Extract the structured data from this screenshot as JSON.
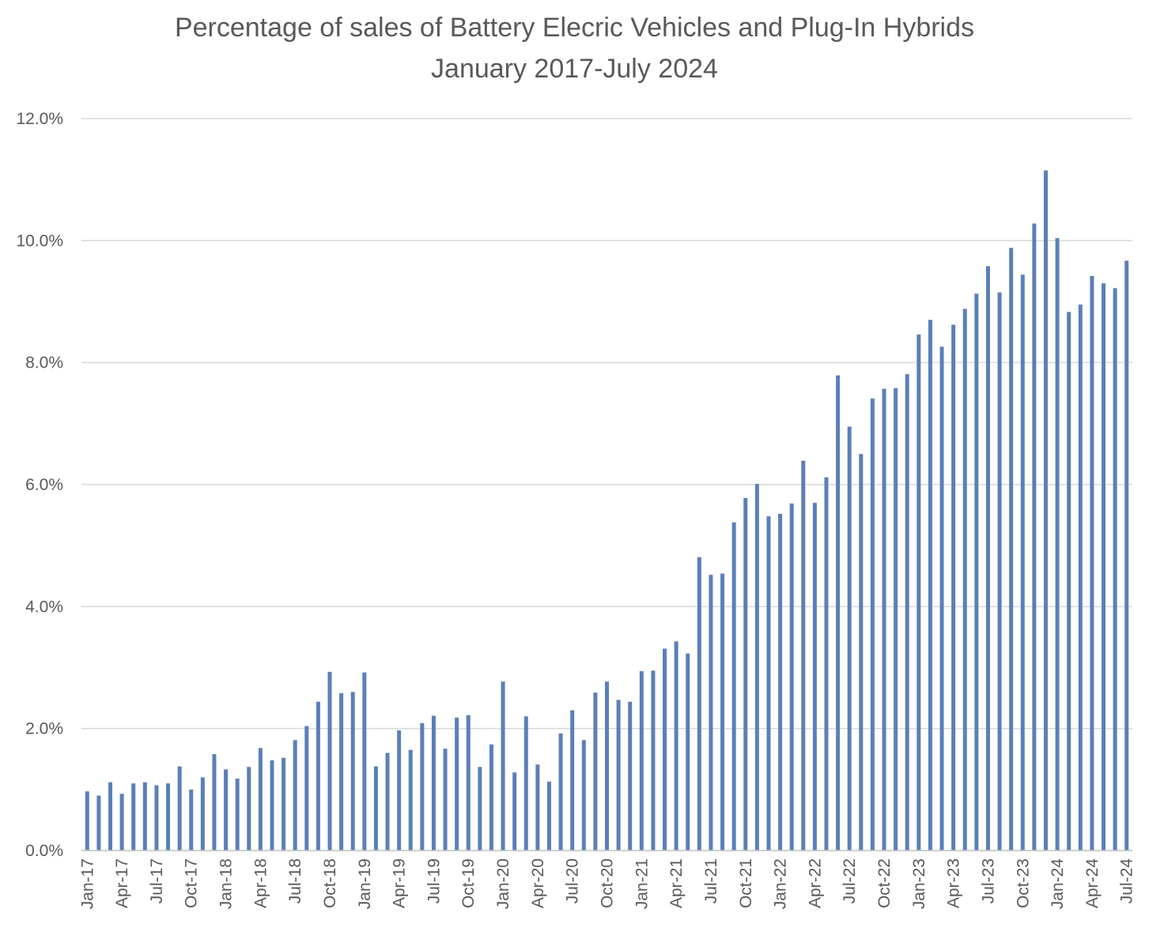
{
  "chart_data": {
    "type": "bar",
    "title": "Percentage of sales of Battery Elecric Vehicles and Plug-In Hybrids",
    "subtitle": "January 2017-July 2024",
    "xlabel": "",
    "ylabel": "",
    "ylim": [
      0,
      12
    ],
    "yticks": [
      "0.0%",
      "2.0%",
      "4.0%",
      "6.0%",
      "8.0%",
      "10.0%",
      "12.0%"
    ],
    "grid": true,
    "legend": "none",
    "bar_color": "#5b7fb8",
    "categories": [
      "Jan-17",
      "Feb-17",
      "Mar-17",
      "Apr-17",
      "May-17",
      "Jun-17",
      "Jul-17",
      "Aug-17",
      "Sep-17",
      "Oct-17",
      "Nov-17",
      "Dec-17",
      "Jan-18",
      "Feb-18",
      "Mar-18",
      "Apr-18",
      "May-18",
      "Jun-18",
      "Jul-18",
      "Aug-18",
      "Sep-18",
      "Oct-18",
      "Nov-18",
      "Dec-18",
      "Jan-19",
      "Feb-19",
      "Mar-19",
      "Apr-19",
      "May-19",
      "Jun-19",
      "Jul-19",
      "Aug-19",
      "Sep-19",
      "Oct-19",
      "Nov-19",
      "Dec-19",
      "Jan-20",
      "Feb-20",
      "Mar-20",
      "Apr-20",
      "May-20",
      "Jun-20",
      "Jul-20",
      "Aug-20",
      "Sep-20",
      "Oct-20",
      "Nov-20",
      "Dec-20",
      "Jan-21",
      "Feb-21",
      "Mar-21",
      "Apr-21",
      "May-21",
      "Jun-21",
      "Jul-21",
      "Aug-21",
      "Sep-21",
      "Oct-21",
      "Nov-21",
      "Dec-21",
      "Jan-22",
      "Feb-22",
      "Mar-22",
      "Apr-22",
      "May-22",
      "Jun-22",
      "Jul-22",
      "Aug-22",
      "Sep-22",
      "Oct-22",
      "Nov-22",
      "Dec-22",
      "Jan-23",
      "Feb-23",
      "Mar-23",
      "Apr-23",
      "May-23",
      "Jun-23",
      "Jul-23",
      "Aug-23",
      "Sep-23",
      "Oct-23",
      "Nov-23",
      "Dec-23",
      "Jan-24",
      "Feb-24",
      "Mar-24",
      "Apr-24",
      "May-24",
      "Jun-24",
      "Jul-24"
    ],
    "tick_labels": [
      "Jan-17",
      "Apr-17",
      "Jul-17",
      "Oct-17",
      "Jan-18",
      "Apr-18",
      "Jul-18",
      "Oct-18",
      "Jan-19",
      "Apr-19",
      "Jul-19",
      "Oct-19",
      "Jan-20",
      "Apr-20",
      "Jul-20",
      "Oct-20",
      "Jan-21",
      "Apr-21",
      "Jul-21",
      "Oct-21",
      "Jan-22",
      "Apr-22",
      "Jul-22",
      "Oct-22",
      "Jan-23",
      "Apr-23",
      "Jul-23",
      "Oct-23",
      "Jan-24",
      "Apr-24",
      "Jul-24"
    ],
    "values": [
      0.97,
      0.9,
      1.12,
      0.93,
      1.1,
      1.12,
      1.07,
      1.1,
      1.38,
      1.0,
      1.2,
      1.58,
      1.33,
      1.18,
      1.37,
      1.68,
      1.48,
      1.52,
      1.81,
      2.04,
      2.44,
      2.93,
      2.58,
      2.6,
      2.92,
      1.38,
      1.6,
      1.97,
      1.65,
      2.09,
      2.21,
      1.67,
      2.18,
      2.22,
      1.37,
      1.74,
      2.77,
      1.28,
      2.2,
      1.41,
      1.13,
      1.92,
      2.3,
      1.81,
      2.59,
      2.77,
      2.47,
      2.44,
      2.94,
      2.95,
      3.31,
      3.43,
      3.23,
      4.81,
      4.52,
      4.54,
      5.38,
      5.78,
      6.01,
      5.48,
      5.52,
      5.69,
      6.39,
      5.7,
      6.12,
      7.79,
      6.95,
      6.5,
      7.41,
      7.57,
      7.58,
      7.81,
      8.46,
      8.7,
      8.26,
      8.62,
      8.88,
      9.13,
      9.58,
      9.15,
      9.88,
      9.44,
      10.28,
      11.15,
      10.04,
      8.83,
      8.95,
      9.42,
      9.3,
      9.22,
      9.67
    ]
  }
}
